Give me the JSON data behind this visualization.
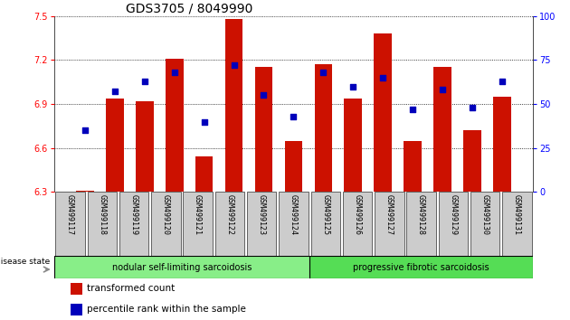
{
  "title": "GDS3705 / 8049990",
  "samples": [
    "GSM499117",
    "GSM499118",
    "GSM499119",
    "GSM499120",
    "GSM499121",
    "GSM499122",
    "GSM499123",
    "GSM499124",
    "GSM499125",
    "GSM499126",
    "GSM499127",
    "GSM499128",
    "GSM499129",
    "GSM499130",
    "GSM499131"
  ],
  "bar_values": [
    6.31,
    6.94,
    6.92,
    7.21,
    6.54,
    7.48,
    7.15,
    6.65,
    7.17,
    6.94,
    7.38,
    6.65,
    7.15,
    6.72,
    6.95
  ],
  "percentile_values": [
    35,
    57,
    63,
    68,
    40,
    72,
    55,
    43,
    68,
    60,
    65,
    47,
    58,
    48,
    63
  ],
  "ylim_left": [
    6.3,
    7.5
  ],
  "ylim_right": [
    0,
    100
  ],
  "yticks_left": [
    6.3,
    6.6,
    6.9,
    7.2,
    7.5
  ],
  "yticks_right": [
    0,
    25,
    50,
    75,
    100
  ],
  "bar_color": "#cc1100",
  "dot_color": "#0000bb",
  "group1_label": "nodular self-limiting sarcoidosis",
  "group2_label": "progressive fibrotic sarcoidosis",
  "group1_count": 8,
  "group2_count": 7,
  "disease_state_label": "disease state",
  "legend_bar_label": "transformed count",
  "legend_dot_label": "percentile rank within the sample",
  "bg_plot": "#ffffff",
  "bg_xtick": "#cccccc",
  "bg_group1": "#88ee88",
  "bg_group2": "#55dd55",
  "title_fontsize": 10,
  "tick_fontsize": 7,
  "label_fontsize": 7.5
}
